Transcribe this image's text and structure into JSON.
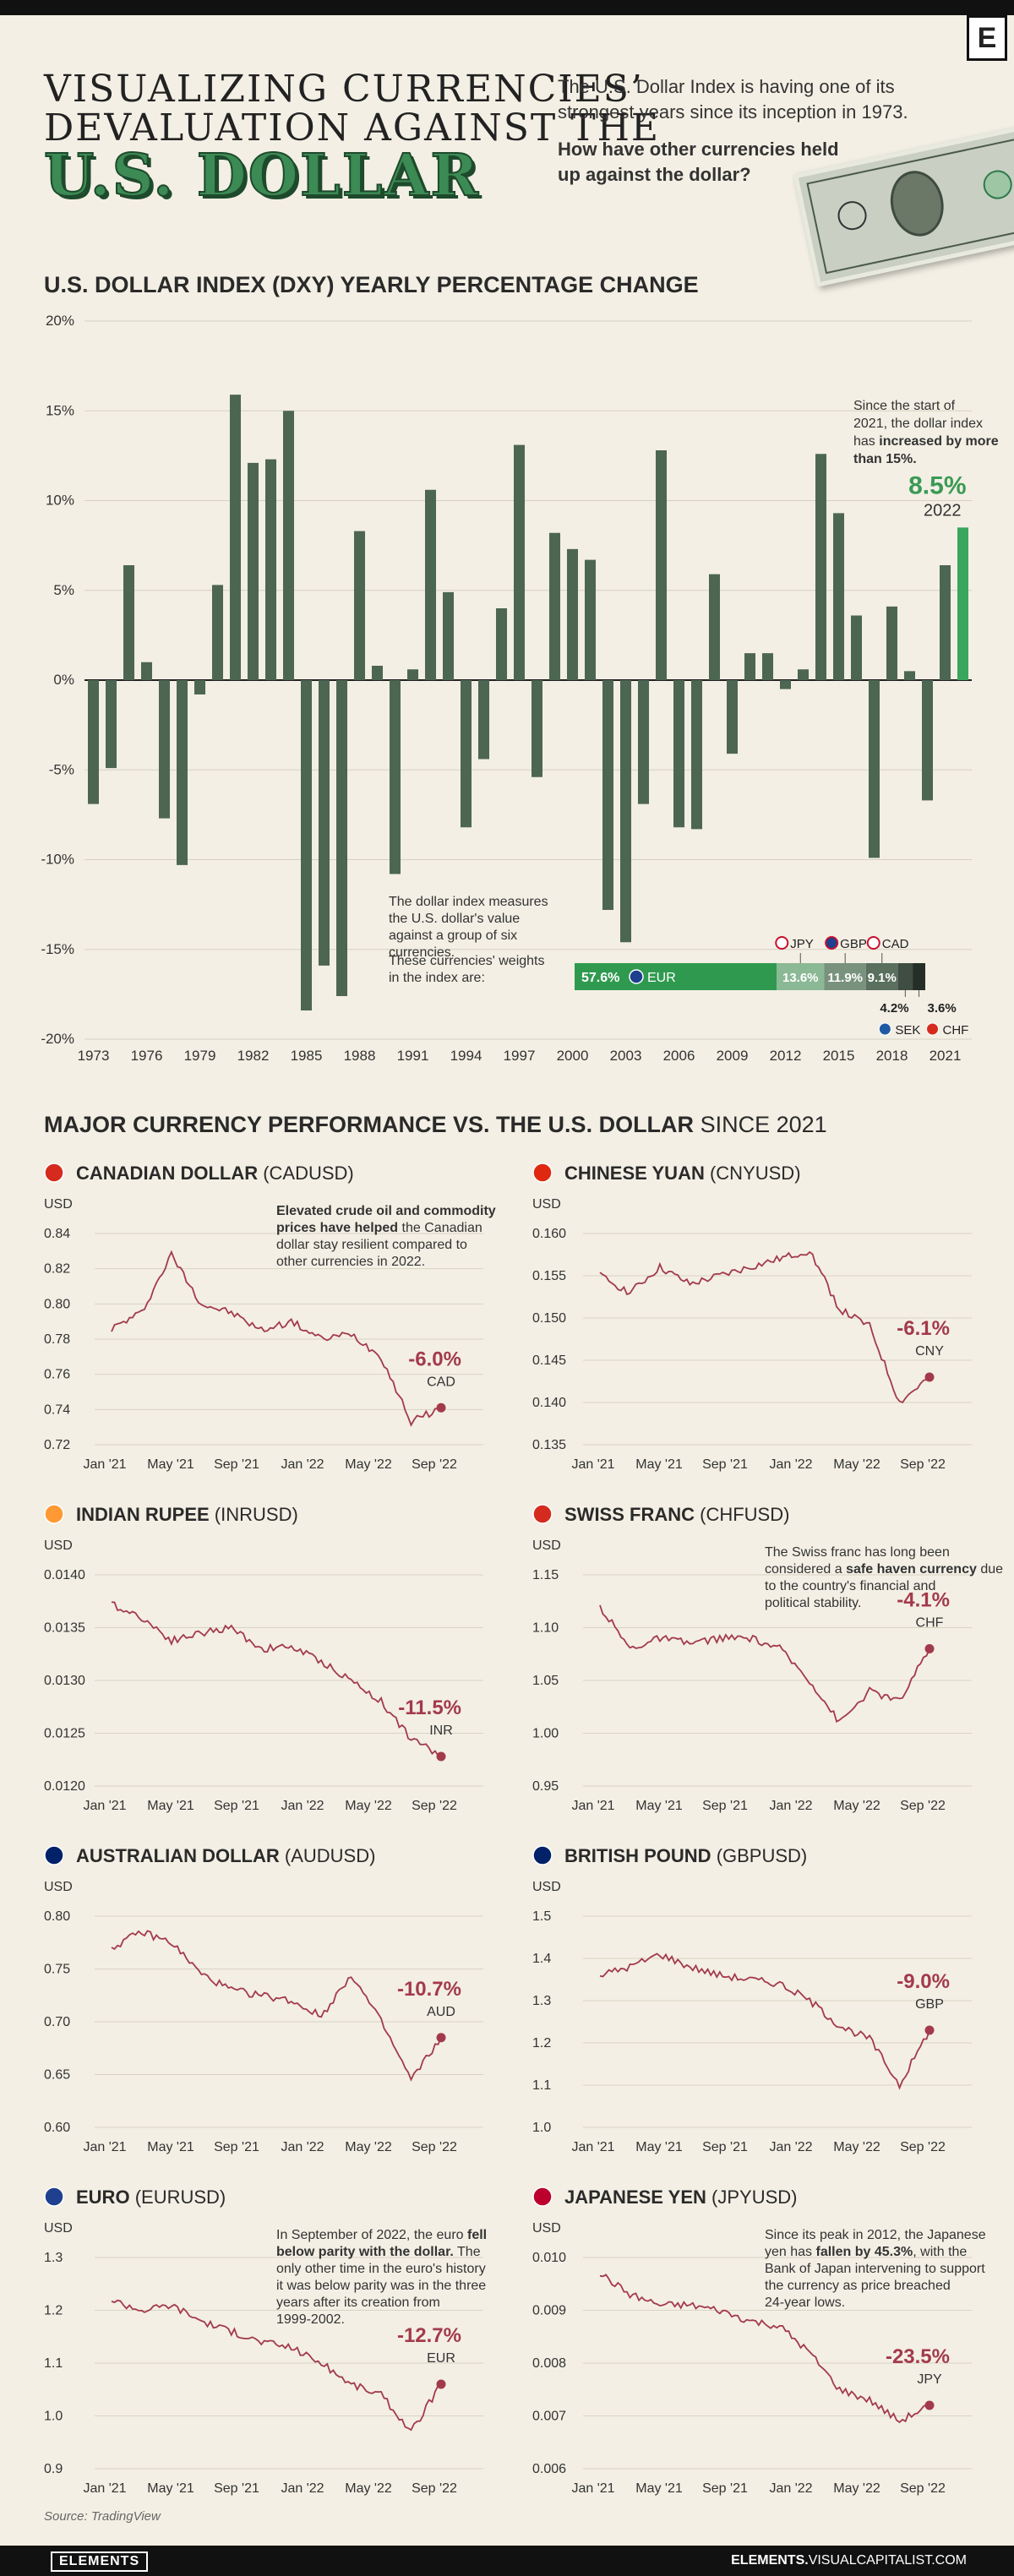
{
  "header": {
    "title_line1": "Visualizing Currencies’",
    "title_line2": "Devaluation Against the",
    "title_line3": "U.S. DOLLAR",
    "intro": "The U.S. Dollar Index is having one of its strongest years since its inception in 1973.",
    "question": "How have other currencies held up against the dollar?",
    "logo": "E"
  },
  "colors": {
    "bar": "#4d6652",
    "bar_highlight": "#3aa55c",
    "accent_green": "#3a9a55",
    "line": "#a33a4b",
    "background": "#f3efe4"
  },
  "dxy": {
    "section_title": "U.S. DOLLAR INDEX (DXY) YEARLY PERCENTAGE CHANGE",
    "annotation_pre": "Since the start of 2021, the dollar index has ",
    "annotation_bold": "increased by more than 15%.",
    "highlight_value": "8.5%",
    "highlight_year": "2022",
    "weights_text1": "The dollar index measures the U.S. dollar's value against a group of six currencies.",
    "weights_text2": "These currencies' weights in the index are:",
    "weights": [
      {
        "code": "EUR",
        "label": "57.6%",
        "value": 57.6,
        "color": "#2f9a4f"
      },
      {
        "code": "JPY",
        "label": "13.6%",
        "value": 13.6,
        "color": "#8bb895"
      },
      {
        "code": "GBP",
        "label": "11.9%",
        "value": 11.9,
        "color": "#79927d"
      },
      {
        "code": "CAD",
        "label": "9.1%",
        "value": 9.1,
        "color": "#5a6f5e"
      },
      {
        "code": "SEK",
        "label": "4.2%",
        "value": 4.2,
        "color": "#404d43"
      },
      {
        "code": "CHF",
        "label": "3.6%",
        "value": 3.6,
        "color": "#262e28"
      }
    ]
  },
  "chart_data": [
    {
      "type": "bar",
      "title": "U.S. Dollar Index (DXY) Yearly Percentage Change",
      "ylim": [
        -20,
        20
      ],
      "yticks": [
        -20,
        -15,
        -10,
        -5,
        0,
        5,
        10,
        15,
        20
      ],
      "ytick_labels": [
        "-20%",
        "-15%",
        "-10%",
        "-5%",
        "0%",
        "5%",
        "10%",
        "15%",
        "20%"
      ],
      "xtick_labels": [
        "1973",
        "1976",
        "1979",
        "1982",
        "1985",
        "1988",
        "1991",
        "1994",
        "1997",
        "2000",
        "2003",
        "2006",
        "2009",
        "2012",
        "2015",
        "2018",
        "2021"
      ],
      "categories": [
        1973,
        1974,
        1975,
        1976,
        1977,
        1978,
        1979,
        1980,
        1981,
        1982,
        1983,
        1984,
        1985,
        1986,
        1987,
        1988,
        1989,
        1990,
        1991,
        1992,
        1993,
        1994,
        1995,
        1996,
        1997,
        1998,
        1999,
        2000,
        2001,
        2002,
        2003,
        2004,
        2005,
        2006,
        2007,
        2008,
        2009,
        2010,
        2011,
        2012,
        2013,
        2014,
        2015,
        2016,
        2017,
        2018,
        2019,
        2020,
        2021,
        2022
      ],
      "values": [
        -6.9,
        -4.9,
        6.4,
        1.0,
        -7.7,
        -10.3,
        -0.8,
        5.3,
        15.9,
        12.1,
        12.3,
        15.0,
        -18.4,
        -15.9,
        -17.6,
        8.3,
        0.8,
        -10.8,
        0.6,
        10.6,
        4.9,
        -8.2,
        -4.4,
        4.0,
        13.1,
        -5.4,
        8.2,
        7.3,
        6.7,
        -12.8,
        -14.6,
        -6.9,
        12.8,
        -8.2,
        -8.3,
        5.9,
        -4.1,
        1.5,
        1.5,
        -0.5,
        0.6,
        12.6,
        9.3,
        3.6,
        -9.9,
        4.1,
        0.5,
        -6.7,
        6.4,
        8.5
      ]
    },
    {
      "type": "line",
      "title": "CANADIAN DOLLAR",
      "ticker": "(CADUSD)",
      "flag": "ca",
      "ylabel": "USD",
      "ylim": [
        0.72,
        0.84
      ],
      "yticks": [
        "0.72",
        "0.74",
        "0.76",
        "0.78",
        "0.80",
        "0.82",
        "0.84"
      ],
      "xlabels": [
        "Jan '21",
        "May '21",
        "Sep '21",
        "Jan '22",
        "May '22",
        "Sep '22"
      ],
      "x": [
        0,
        2,
        4,
        6,
        8,
        10,
        12,
        14,
        16,
        18,
        20,
        22
      ],
      "y": [
        0.786,
        0.795,
        0.828,
        0.8,
        0.795,
        0.785,
        0.79,
        0.78,
        0.783,
        0.77,
        0.733,
        0.741
      ],
      "change": "-6.0%",
      "code": "CAD",
      "note_bold": "Elevated crude oil and commodity prices have helped",
      "note_rest": " the Canadian dollar stay resilient compared to other currencies in 2022."
    },
    {
      "type": "line",
      "title": "CHINESE YUAN",
      "ticker": "(CNYUSD)",
      "flag": "cn",
      "ylabel": "USD",
      "ylim": [
        0.135,
        0.16
      ],
      "yticks": [
        "0.135",
        "0.140",
        "0.145",
        "0.150",
        "0.155",
        "0.160"
      ],
      "xlabels": [
        "Jan '21",
        "May '21",
        "Sep '21",
        "Jan '22",
        "May '22",
        "Sep '22"
      ],
      "x": [
        0,
        2,
        4,
        6,
        8,
        10,
        12,
        14,
        16,
        18,
        20,
        22
      ],
      "y": [
        0.155,
        0.153,
        0.156,
        0.154,
        0.155,
        0.156,
        0.157,
        0.158,
        0.151,
        0.149,
        0.14,
        0.143
      ],
      "change": "-6.1%",
      "code": "CNY"
    },
    {
      "type": "line",
      "title": "INDIAN RUPEE",
      "ticker": "(INRUSD)",
      "flag": "in",
      "ylabel": "USD",
      "ylim": [
        0.012,
        0.014
      ],
      "yticks": [
        "0.0120",
        "0.0125",
        "0.0130",
        "0.0135",
        "0.0140"
      ],
      "xlabels": [
        "Jan '21",
        "May '21",
        "Sep '21",
        "Jan '22",
        "May '22",
        "Sep '22"
      ],
      "x": [
        0,
        2,
        4,
        6,
        8,
        10,
        12,
        14,
        16,
        18,
        20,
        22
      ],
      "y": [
        0.01372,
        0.0136,
        0.01338,
        0.01345,
        0.0135,
        0.0133,
        0.01332,
        0.01318,
        0.013,
        0.0128,
        0.01245,
        0.01228
      ],
      "change": "-11.5%",
      "code": "INR"
    },
    {
      "type": "line",
      "title": "SWISS FRANC",
      "ticker": "(CHFUSD)",
      "flag": "ch",
      "ylabel": "USD",
      "ylim": [
        0.95,
        1.15
      ],
      "yticks": [
        "0.95",
        "1.00",
        "1.05",
        "1.10",
        "1.15"
      ],
      "xlabels": [
        "Jan '21",
        "May '21",
        "Sep '21",
        "Jan '22",
        "May '22",
        "Sep '22"
      ],
      "x": [
        0,
        2,
        4,
        6,
        8,
        10,
        12,
        14,
        16,
        18,
        20,
        22
      ],
      "y": [
        1.12,
        1.08,
        1.09,
        1.085,
        1.09,
        1.09,
        1.08,
        1.05,
        1.01,
        1.04,
        1.03,
        1.08
      ],
      "change": "-4.1%",
      "code": "CHF",
      "note_pre": "The Swiss franc has long been considered a ",
      "note_bold": "safe haven currency",
      "note_rest": " due to the country's financial and political stability."
    },
    {
      "type": "line",
      "title": "AUSTRALIAN DOLLAR",
      "ticker": "(AUDUSD)",
      "flag": "au",
      "ylabel": "USD",
      "ylim": [
        0.6,
        0.8
      ],
      "yticks": [
        "0.60",
        "0.65",
        "0.70",
        "0.75",
        "0.80"
      ],
      "xlabels": [
        "Jan '21",
        "May '21",
        "Sep '21",
        "Jan '22",
        "May '22",
        "Sep '22"
      ],
      "x": [
        0,
        2,
        4,
        6,
        8,
        10,
        12,
        14,
        16,
        18,
        20,
        22
      ],
      "y": [
        0.77,
        0.785,
        0.775,
        0.745,
        0.73,
        0.725,
        0.72,
        0.705,
        0.745,
        0.7,
        0.645,
        0.685
      ],
      "change": "-10.7%",
      "code": "AUD"
    },
    {
      "type": "line",
      "title": "BRITISH POUND",
      "ticker": "(GBPUSD)",
      "flag": "gb",
      "ylabel": "USD",
      "ylim": [
        1.0,
        1.5
      ],
      "yticks": [
        "1.0",
        "1.1",
        "1.2",
        "1.3",
        "1.4",
        "1.5"
      ],
      "xlabels": [
        "Jan '21",
        "May '21",
        "Sep '21",
        "Jan '22",
        "May '22",
        "Sep '22"
      ],
      "x": [
        0,
        2,
        4,
        6,
        8,
        10,
        12,
        14,
        16,
        18,
        20,
        22
      ],
      "y": [
        1.36,
        1.38,
        1.41,
        1.38,
        1.36,
        1.35,
        1.34,
        1.3,
        1.24,
        1.21,
        1.1,
        1.23
      ],
      "change": "-9.0%",
      "code": "GBP"
    },
    {
      "type": "line",
      "title": "EURO",
      "ticker": "(EURUSD)",
      "flag": "eu",
      "ylabel": "USD",
      "ylim": [
        0.9,
        1.3
      ],
      "yticks": [
        "0.9",
        "1.0",
        "1.1",
        "1.2",
        "1.3"
      ],
      "xlabels": [
        "Jan '21",
        "May '21",
        "Sep '21",
        "Jan '22",
        "May '22",
        "Sep '22"
      ],
      "x": [
        0,
        2,
        4,
        6,
        8,
        10,
        12,
        14,
        16,
        18,
        20,
        22
      ],
      "y": [
        1.22,
        1.2,
        1.21,
        1.18,
        1.16,
        1.14,
        1.13,
        1.1,
        1.06,
        1.04,
        0.97,
        1.06
      ],
      "change": "-12.7%",
      "code": "EUR",
      "note_pre": "In September of 2022, the euro ",
      "note_bold": "fell below parity with the dollar.",
      "note_rest": " The only other time in the euro's history it was below parity was in the three years after its creation from 1999-2002."
    },
    {
      "type": "line",
      "title": "JAPANESE YEN",
      "ticker": "(JPYUSD)",
      "flag": "jp",
      "ylabel": "USD",
      "ylim": [
        0.006,
        0.01
      ],
      "yticks": [
        "0.006",
        "0.007",
        "0.008",
        "0.009",
        "0.010"
      ],
      "xlabels": [
        "Jan '21",
        "May '21",
        "Sep '21",
        "Jan '22",
        "May '22",
        "Sep '22"
      ],
      "x": [
        0,
        2,
        4,
        6,
        8,
        10,
        12,
        14,
        16,
        18,
        20,
        22
      ],
      "y": [
        0.0097,
        0.0093,
        0.0091,
        0.0091,
        0.009,
        0.0088,
        0.0087,
        0.0082,
        0.0075,
        0.0073,
        0.0069,
        0.0072
      ],
      "change": "-23.5%",
      "code": "JPY",
      "note_pre": "Since its peak in 2012, the Japanese yen has ",
      "note_bold": "fallen by 45.3%",
      "note_rest": ", with the Bank of Japan intervening to support the currency as price breached 24-year lows."
    }
  ],
  "major": {
    "title_bold": "MAJOR CURRENCY PERFORMANCE VS. THE U.S. DOLLAR",
    "title_light": "SINCE 2021"
  },
  "footer": {
    "source": "Source: TradingView",
    "brand": "ELEMENTS",
    "site_bold": "ELEMENTS.",
    "site_rest": "VISUALCAPITALIST.COM"
  }
}
